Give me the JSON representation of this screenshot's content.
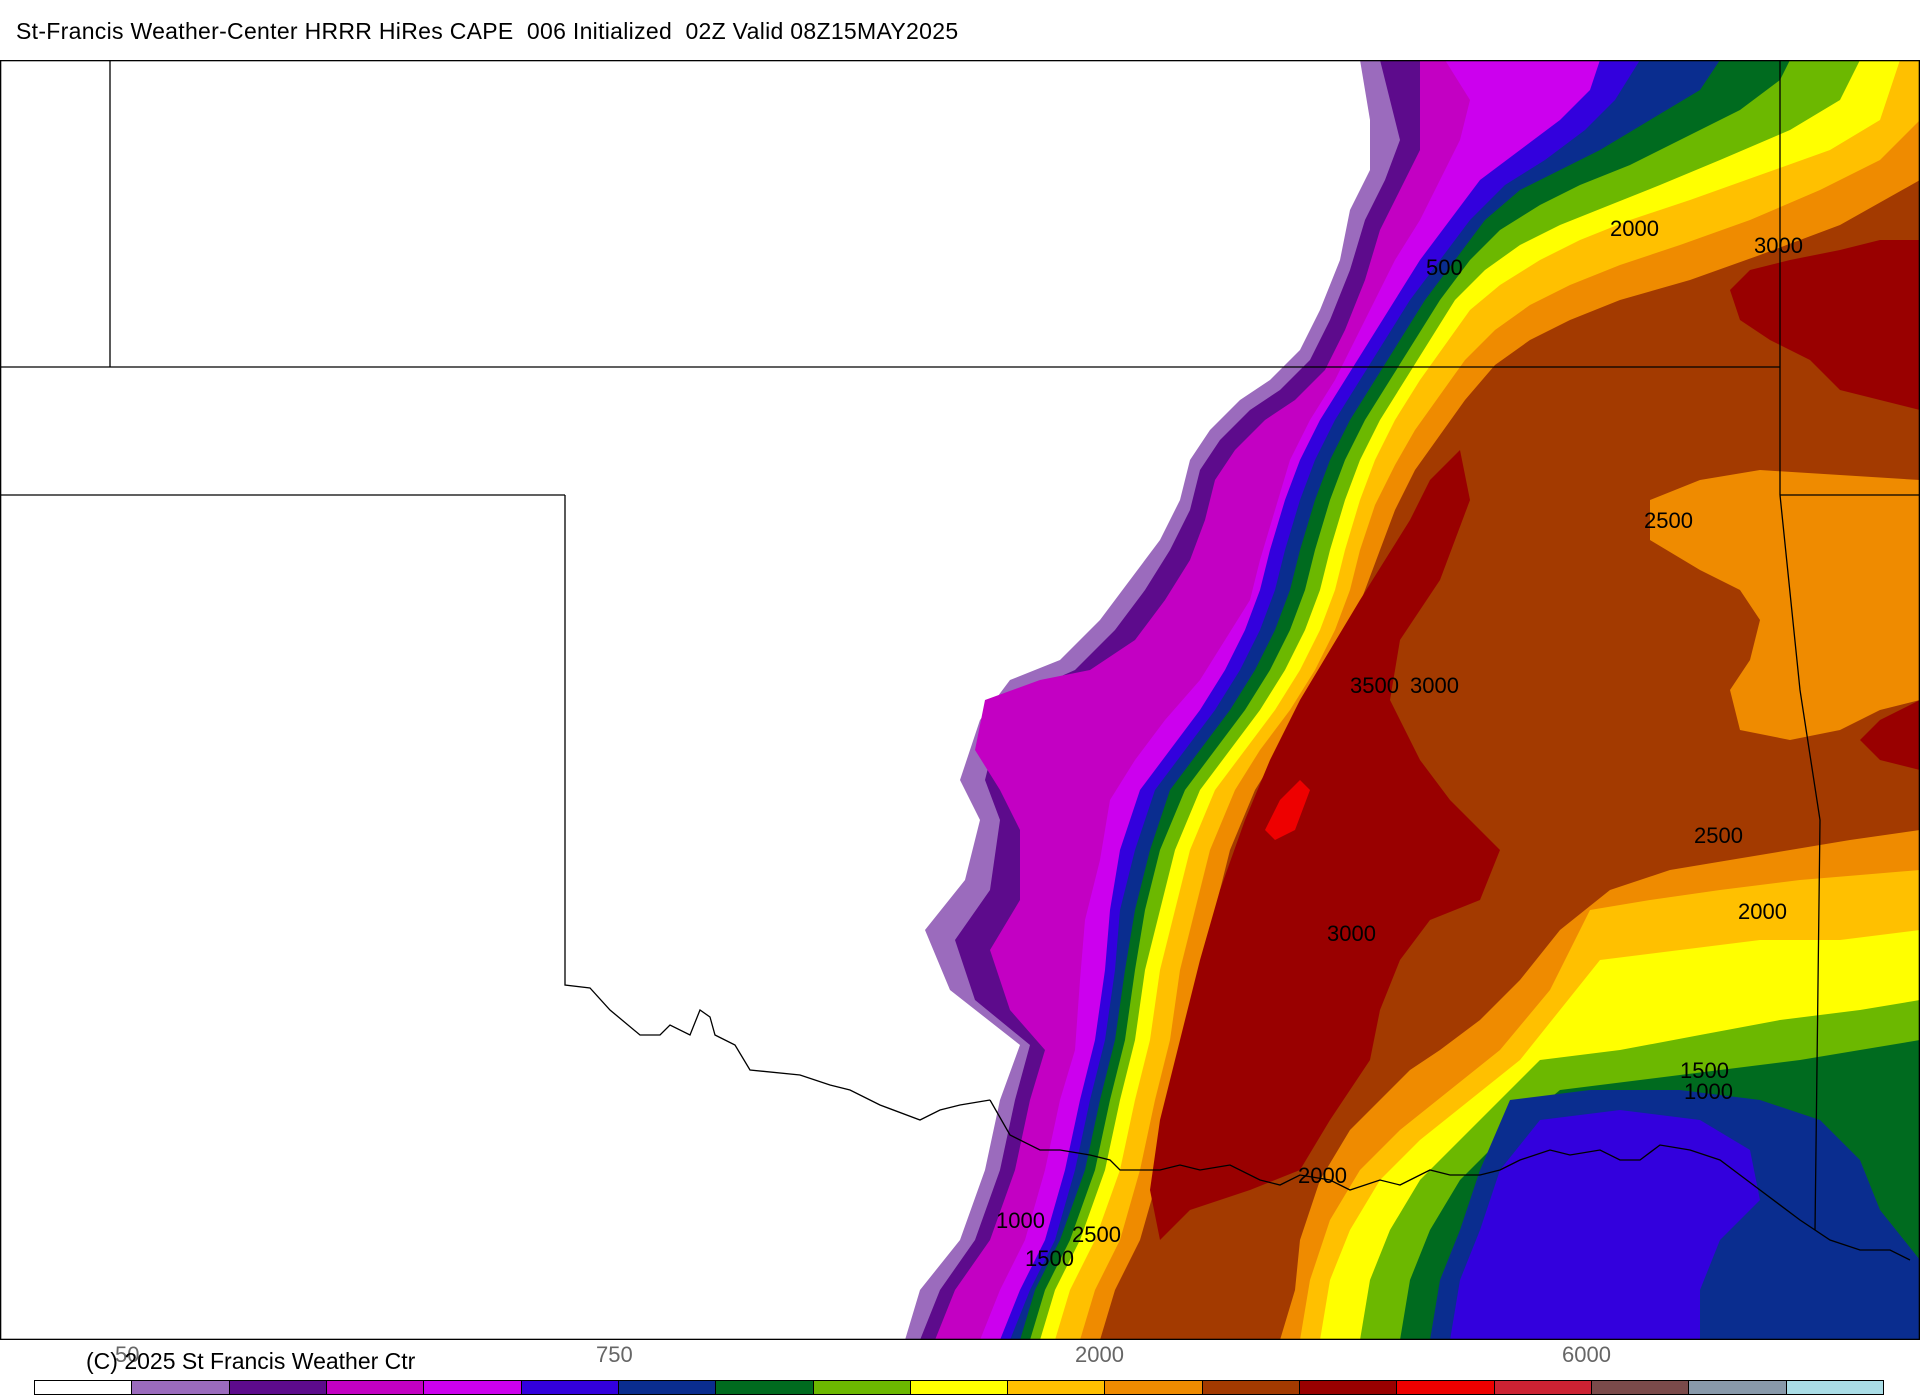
{
  "title": "St-Francis Weather-Center HRRR HiRes CAPE  006 Initialized  02Z Valid 08Z15MAY2025",
  "copyright": "(C) 2025 St Francis Weather Ctr",
  "contour_labels": [
    "500",
    "2000",
    "3000",
    "2500",
    "3500",
    "3000",
    "2500",
    "2000",
    "3000",
    "1500",
    "1000",
    "2000",
    "1000",
    "2500",
    "1500"
  ],
  "legend": {
    "tick_labels": [
      "50",
      "750",
      "2000",
      "6000"
    ],
    "colors": [
      "#ffffff",
      "#9b6bbd",
      "#5d0b8c",
      "#c300c3",
      "#cc00ee",
      "#3300dd",
      "#0a2d8f",
      "#006b1f",
      "#6cb800",
      "#ffff00",
      "#ffc000",
      "#ef8b00",
      "#a33a00",
      "#990000",
      "#ee0000",
      "#cc2233",
      "#7a4a4a",
      "#8899aa",
      "#aadde6"
    ]
  },
  "field_colors": {
    "lt_purple": "#9b6bbd",
    "dk_purple": "#5d0b8c",
    "magenta": "#c300c3",
    "violet": "#cc00ee",
    "blue": "#3300dd",
    "navy": "#0a2d8f",
    "dk_green": "#006b1f",
    "lt_green": "#6cb800",
    "yellow": "#ffff00",
    "gold": "#ffc000",
    "orange": "#ef8b00",
    "brown": "#a33a00",
    "dk_red": "#990000",
    "red": "#ee0000"
  }
}
